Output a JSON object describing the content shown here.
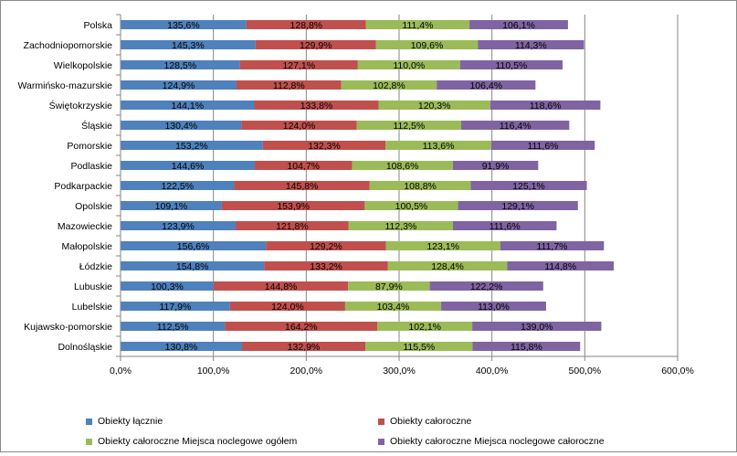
{
  "chart_data": {
    "type": "bar",
    "orientation": "horizontal",
    "stacked": true,
    "title": "",
    "xlabel": "",
    "ylabel": "",
    "xlim": [
      0,
      600
    ],
    "x_ticks": [
      0,
      100,
      200,
      300,
      400,
      500,
      600
    ],
    "x_tick_labels": [
      "0,0%",
      "100,0%",
      "200,0%",
      "300,0%",
      "400,0%",
      "500,0%",
      "600,0%"
    ],
    "grid": true,
    "legend_position": "bottom",
    "categories": [
      "Polska",
      "Zachodniopomorskie",
      "Wielkopolskie",
      "Warmińsko-mazurskie",
      "Świętokrzyskie",
      "Śląskie",
      "Pomorskie",
      "Podlaskie",
      "Podkarpackie",
      "Opolskie",
      "Mazowieckie",
      "Małopolskie",
      "Łódzkie",
      "Lubuskie",
      "Lubelskie",
      "Kujawsko-pomorskie",
      "Dolnośląskie"
    ],
    "series": [
      {
        "name": "Obiekty łącznie",
        "color": "#4f81bd",
        "values": [
          135.6,
          145.3,
          128.5,
          124.9,
          144.1,
          130.4,
          153.2,
          144.6,
          122.5,
          109.1,
          123.9,
          156.6,
          154.8,
          100.3,
          117.9,
          112.5,
          130.8
        ],
        "labels": [
          "135,6%",
          "145,3%",
          "128,5%",
          "124,9%",
          "144,1%",
          "130,4%",
          "153,2%",
          "144,6%",
          "122,5%",
          "109,1%",
          "123,9%",
          "156,6%",
          "154,8%",
          "100,3%",
          "117,9%",
          "112,5%",
          "130,8%"
        ]
      },
      {
        "name": "Obiekty całoroczne",
        "color": "#c0504d",
        "values": [
          128.8,
          129.9,
          127.1,
          112.8,
          133.8,
          124.0,
          132.3,
          104.7,
          145.8,
          153.9,
          121.8,
          129.2,
          133.2,
          144.8,
          124.0,
          164.2,
          132.9
        ],
        "labels": [
          "128,8%",
          "129,9%",
          "127,1%",
          "112,8%",
          "133,8%",
          "124,0%",
          "132,3%",
          "104,7%",
          "145,8%",
          "153,9%",
          "121,8%",
          "129,2%",
          "133,2%",
          "144,8%",
          "124,0%",
          "164,2%",
          "132,9%"
        ]
      },
      {
        "name": "Obiekty całoroczne Miejsca noclegowe ogółem",
        "color": "#9bbb59",
        "values": [
          111.4,
          109.6,
          110.0,
          102.8,
          120.3,
          112.5,
          113.6,
          108.6,
          108.8,
          100.5,
          112.3,
          123.1,
          128.4,
          87.9,
          103.4,
          102.1,
          115.5
        ],
        "labels": [
          "111,4%",
          "109,6%",
          "110,0%",
          "102,8%",
          "120,3%",
          "112,5%",
          "113,6%",
          "108,6%",
          "108,8%",
          "100,5%",
          "112,3%",
          "123,1%",
          "128,4%",
          "87,9%",
          "103,4%",
          "102,1%",
          "115,5%"
        ]
      },
      {
        "name": "Obiekty całoroczne Miejsca noclegowe całoroczne",
        "color": "#8064a2",
        "values": [
          106.1,
          114.3,
          110.5,
          106.4,
          118.6,
          116.4,
          111.6,
          91.9,
          125.1,
          129.1,
          111.6,
          111.7,
          114.8,
          122.2,
          113.0,
          139.0,
          115.8
        ],
        "labels": [
          "106,1%",
          "114,3%",
          "110,5%",
          "106,4%",
          "118,6%",
          "116,4%",
          "111,6%",
          "91,9%",
          "125,1%",
          "129,1%",
          "111,6%",
          "111,7%",
          "114,8%",
          "122,2%",
          "113,0%",
          "139,0%",
          "115,8%"
        ]
      }
    ]
  }
}
